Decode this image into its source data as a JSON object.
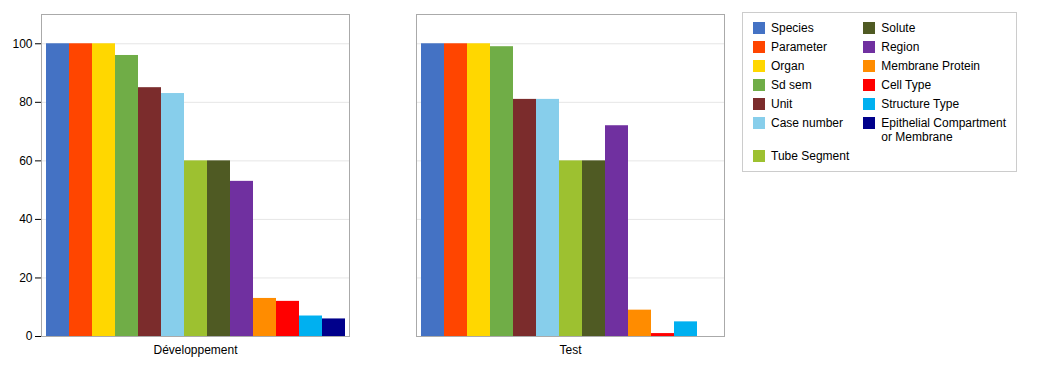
{
  "chart_data": {
    "type": "bar",
    "categories": [
      "Développement",
      "Test"
    ],
    "series": [
      {
        "name": "Species",
        "color": "#4472C4",
        "values": [
          100,
          100
        ]
      },
      {
        "name": "Parameter",
        "color": "#FF4500",
        "values": [
          100,
          100
        ]
      },
      {
        "name": "Organ",
        "color": "#FFD700",
        "values": [
          100,
          100
        ]
      },
      {
        "name": "Sd sem",
        "color": "#70AD47",
        "values": [
          96,
          99
        ]
      },
      {
        "name": "Unit",
        "color": "#7B2C2C",
        "values": [
          85,
          81
        ]
      },
      {
        "name": "Case number",
        "color": "#87CEEB",
        "values": [
          83,
          81
        ]
      },
      {
        "name": "Tube Segment",
        "color": "#9DC130",
        "values": [
          60,
          60
        ]
      },
      {
        "name": "Solute",
        "color": "#4F5A23",
        "values": [
          60,
          60
        ]
      },
      {
        "name": "Region",
        "color": "#7030A0",
        "values": [
          53,
          72
        ]
      },
      {
        "name": "Membrane Protein",
        "color": "#FF8C00",
        "values": [
          13,
          9
        ]
      },
      {
        "name": "Cell Type",
        "color": "#FF0000",
        "values": [
          12,
          1
        ]
      },
      {
        "name": "Structure Type",
        "color": "#00B0F0",
        "values": [
          7,
          5
        ]
      },
      {
        "name": "Epithelial Compartment\nor Membrane",
        "color": "#00008B",
        "values": [
          6,
          0
        ]
      }
    ],
    "ylim": [
      0,
      110
    ],
    "yticks": [
      0,
      20,
      40,
      60,
      80,
      100
    ],
    "grid": true,
    "legend": "right"
  }
}
